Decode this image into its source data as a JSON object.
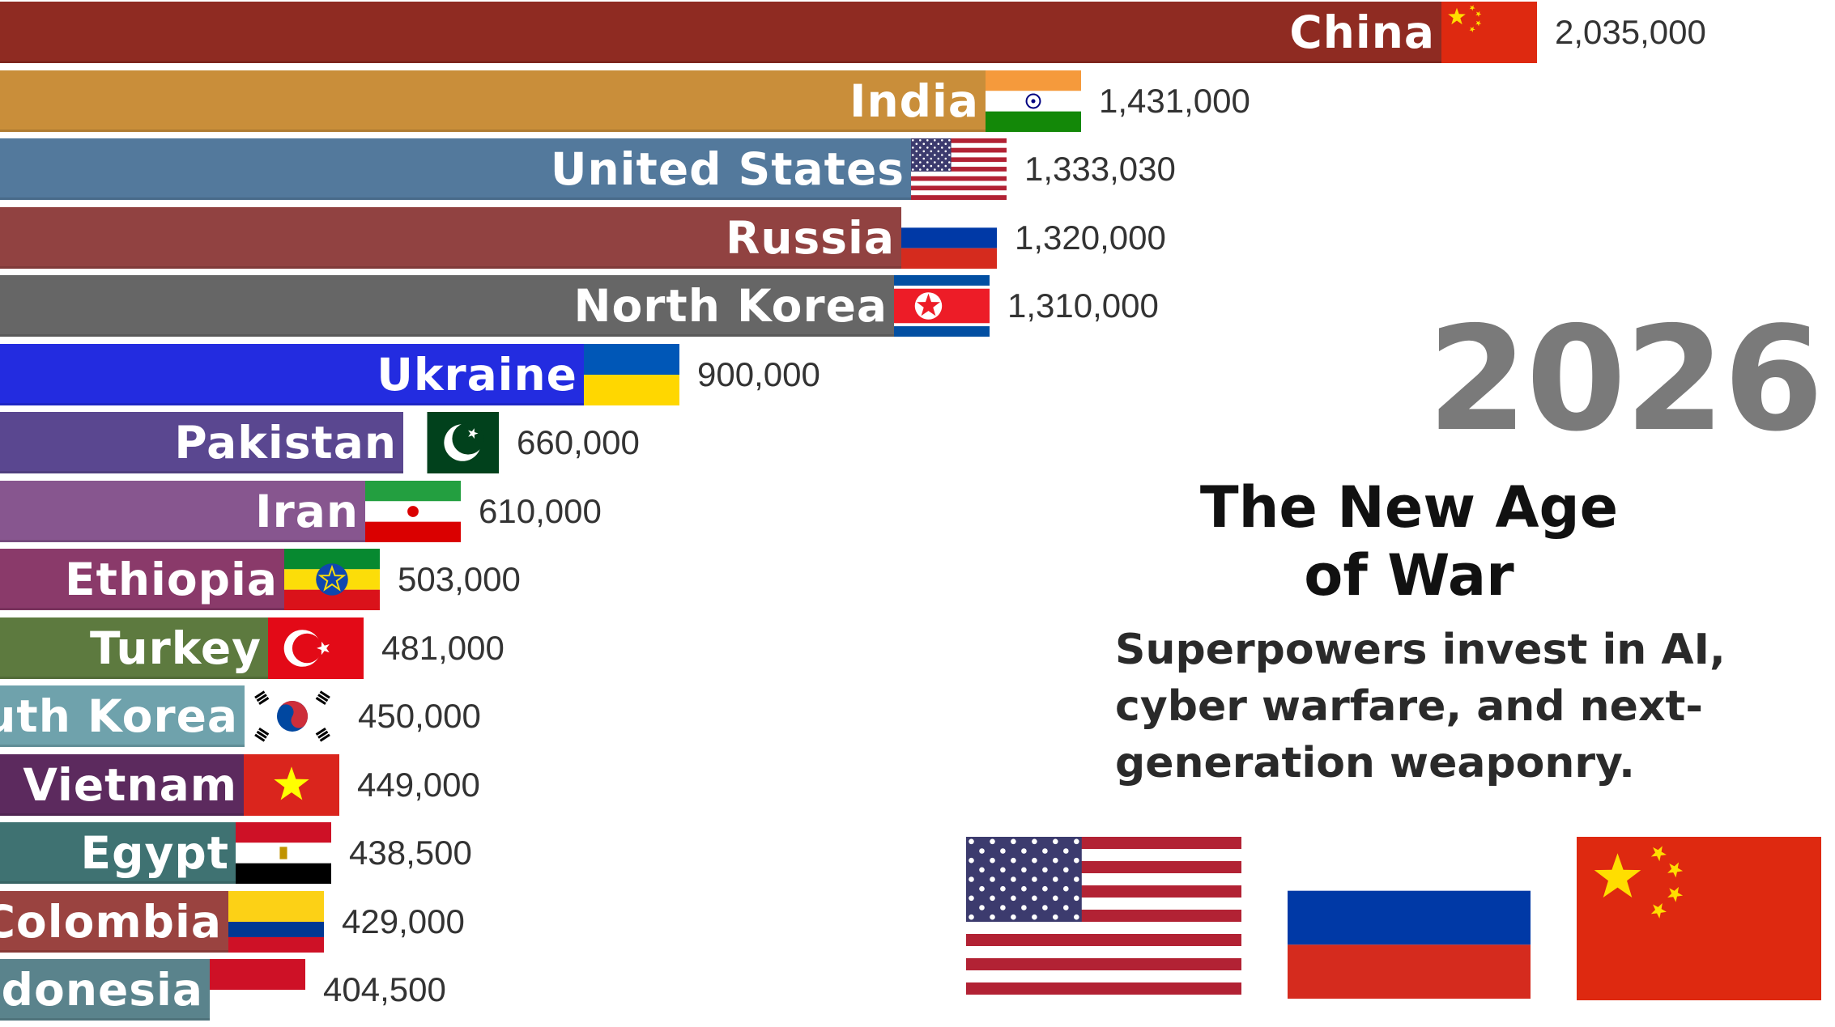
{
  "chart_data": {
    "type": "bar",
    "orientation": "horizontal",
    "title": "The New Age of War",
    "title_lines": [
      "The New Age",
      "of War"
    ],
    "subtitle": "Superpowers invest in AI, cyber warfare, and next-generation weaponry.",
    "subtitle_lines": [
      "Superpowers invest in AI,",
      "cyber warfare, and next-",
      "generation weaponry."
    ],
    "year": "2026",
    "categories": [
      "China",
      "India",
      "United States",
      "Russia",
      "North Korea",
      "Ukraine",
      "Pakistan",
      "Iran",
      "Ethiopia",
      "Turkey",
      "South Korea",
      "Vietnam",
      "Egypt",
      "Colombia",
      "Indonesia"
    ],
    "values": [
      2035000,
      1431000,
      1333030,
      1320000,
      1310000,
      900000,
      660000,
      610000,
      503000,
      481000,
      450000,
      449000,
      438500,
      429000,
      404500
    ],
    "value_labels": [
      "2,035,000",
      "1,431,000",
      "1,333,030",
      "1,320,000",
      "1,310,000",
      "900,000",
      "660,000",
      "610,000",
      "503,000",
      "481,000",
      "450,000",
      "449,000",
      "438,500",
      "429,000",
      "404,500"
    ],
    "bar_colors": [
      "#8f2b22",
      "#c98e3a",
      "#53799c",
      "#914241",
      "#666666",
      "#232ce0",
      "#5a4790",
      "#87568f",
      "#8a3a6a",
      "#5d7a3f",
      "#6fa2ac",
      "#5c2a5e",
      "#3f7272",
      "#9a4340",
      "#5a838c"
    ],
    "flags": [
      "china-flag",
      "india-flag",
      "usa-flag",
      "russia-flag",
      "north-korea-flag",
      "ukraine-flag",
      "pakistan-flag",
      "iran-flag",
      "ethiopia-flag",
      "turkey-flag",
      "south-korea-flag",
      "vietnam-flag",
      "egypt-flag",
      "colombia-flag",
      "indonesia-flag"
    ],
    "featured_flags": [
      "usa-flag",
      "russia-flag",
      "china-flag"
    ],
    "legend": "none",
    "grid": false
  }
}
